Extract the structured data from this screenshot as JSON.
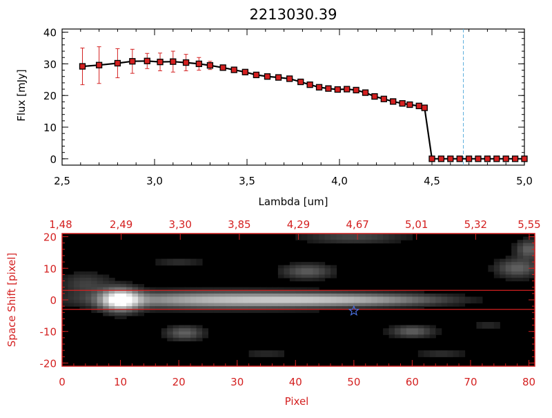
{
  "chart_data": [
    {
      "type": "line",
      "title": "2213030.39",
      "xlabel": "Lambda [um]",
      "ylabel": "Flux [mJy]",
      "xlim": [
        2.5,
        5.0
      ],
      "ylim": [
        -2,
        41
      ],
      "x_ticks": [
        "2.5",
        "3.0",
        "3.5",
        "4.0",
        "4.5",
        "5.0"
      ],
      "y_ticks": [
        "0",
        "10",
        "20",
        "30",
        "40"
      ],
      "marker": "square",
      "line_color": "#000000",
      "marker_color": "#d42020",
      "reference_line": {
        "x": 4.67,
        "color": "#5aaedc",
        "style": "dashed"
      },
      "series": [
        {
          "x": [
            2.61,
            2.7,
            2.8,
            2.88,
            2.96,
            3.03,
            3.1,
            3.17,
            3.24,
            3.3,
            3.37,
            3.43,
            3.49,
            3.55,
            3.61,
            3.67,
            3.73,
            3.79,
            3.84,
            3.89,
            3.94,
            3.99,
            4.04,
            4.09,
            4.14,
            4.19,
            4.24,
            4.29,
            4.34,
            4.38,
            4.43,
            4.46,
            4.5,
            4.55,
            4.6,
            4.65,
            4.7,
            4.75,
            4.8,
            4.85,
            4.9,
            4.95,
            5.0
          ],
          "y": [
            29.2,
            29.6,
            30.2,
            30.8,
            30.9,
            30.6,
            30.7,
            30.4,
            30.0,
            29.5,
            28.8,
            28.1,
            27.4,
            26.5,
            26.0,
            25.7,
            25.3,
            24.3,
            23.4,
            22.6,
            22.2,
            21.9,
            22.0,
            21.7,
            20.9,
            19.7,
            18.9,
            18.1,
            17.5,
            17.1,
            16.7,
            16.1,
            0,
            0,
            0,
            0,
            0,
            0,
            0,
            0,
            0,
            0,
            0
          ],
          "yerr": [
            5.8,
            5.8,
            4.6,
            3.8,
            2.4,
            2.8,
            3.3,
            2.6,
            2.0,
            1.3,
            0.6,
            0.4,
            0.4,
            0.4,
            0.4,
            0.4,
            0.4,
            0.4,
            0.4,
            0.4,
            0.4,
            0.4,
            0.4,
            0.4,
            0.4,
            0.4,
            0.4,
            0.4,
            0.4,
            0.4,
            0.4,
            0.4,
            0.2,
            0.2,
            0.2,
            0.2,
            0.2,
            0.2,
            0.2,
            0.2,
            0.2,
            0.2,
            0.2
          ]
        }
      ]
    },
    {
      "type": "heatmap",
      "xlabel": "Pixel",
      "ylabel": "Space Shift [pixel]",
      "xlim": [
        0,
        81
      ],
      "ylim": [
        -21,
        21
      ],
      "x_ticks": [
        "0",
        "10",
        "20",
        "30",
        "40",
        "50",
        "60",
        "70",
        "80"
      ],
      "y_ticks": [
        "-20",
        "-10",
        "0",
        "10",
        "20"
      ],
      "top_axis_ticks": [
        "1.48",
        "2.49",
        "3.30",
        "3.85",
        "4.29",
        "4.67",
        "5.01",
        "5.32",
        "5.55"
      ],
      "axis_color": "#d42020",
      "colormap": "grayscale",
      "extraction_window": [
        -3,
        3
      ],
      "marker": {
        "type": "star",
        "x": 50,
        "y": -3.5,
        "color": "#4a70e0"
      },
      "blobs": [
        {
          "x": 10,
          "y": 0,
          "sx": 2.2,
          "sy": 2.3,
          "a": 1.0
        },
        {
          "x": 26,
          "y": 0,
          "sx": 13,
          "sy": 1.7,
          "a": 0.62
        },
        {
          "x": 45,
          "y": 0,
          "sx": 10,
          "sy": 1.4,
          "a": 0.46
        },
        {
          "x": 57,
          "y": 0,
          "sx": 8,
          "sy": 1.2,
          "a": 0.22
        },
        {
          "x": 4,
          "y": 5,
          "sx": 3,
          "sy": 2.5,
          "a": 0.18
        },
        {
          "x": 42,
          "y": 9,
          "sx": 3,
          "sy": 1.6,
          "a": 0.28
        },
        {
          "x": 21,
          "y": -10.5,
          "sx": 2.2,
          "sy": 1.5,
          "a": 0.3
        },
        {
          "x": 60,
          "y": -10,
          "sx": 2.5,
          "sy": 1.3,
          "a": 0.3
        },
        {
          "x": 50,
          "y": 20,
          "sx": 6,
          "sy": 1.5,
          "a": 0.2
        },
        {
          "x": 78,
          "y": 10,
          "sx": 2.5,
          "sy": 2,
          "a": 0.3
        },
        {
          "x": 80,
          "y": 16,
          "sx": 1.5,
          "sy": 2,
          "a": 0.3
        },
        {
          "x": 20,
          "y": 12,
          "sx": 3,
          "sy": 1,
          "a": 0.12
        },
        {
          "x": 65,
          "y": -17,
          "sx": 3,
          "sy": 1,
          "a": 0.12
        },
        {
          "x": 73,
          "y": -8,
          "sx": 2,
          "sy": 1,
          "a": 0.1
        },
        {
          "x": 35,
          "y": -17,
          "sx": 3,
          "sy": 1.2,
          "a": 0.1
        }
      ]
    }
  ]
}
